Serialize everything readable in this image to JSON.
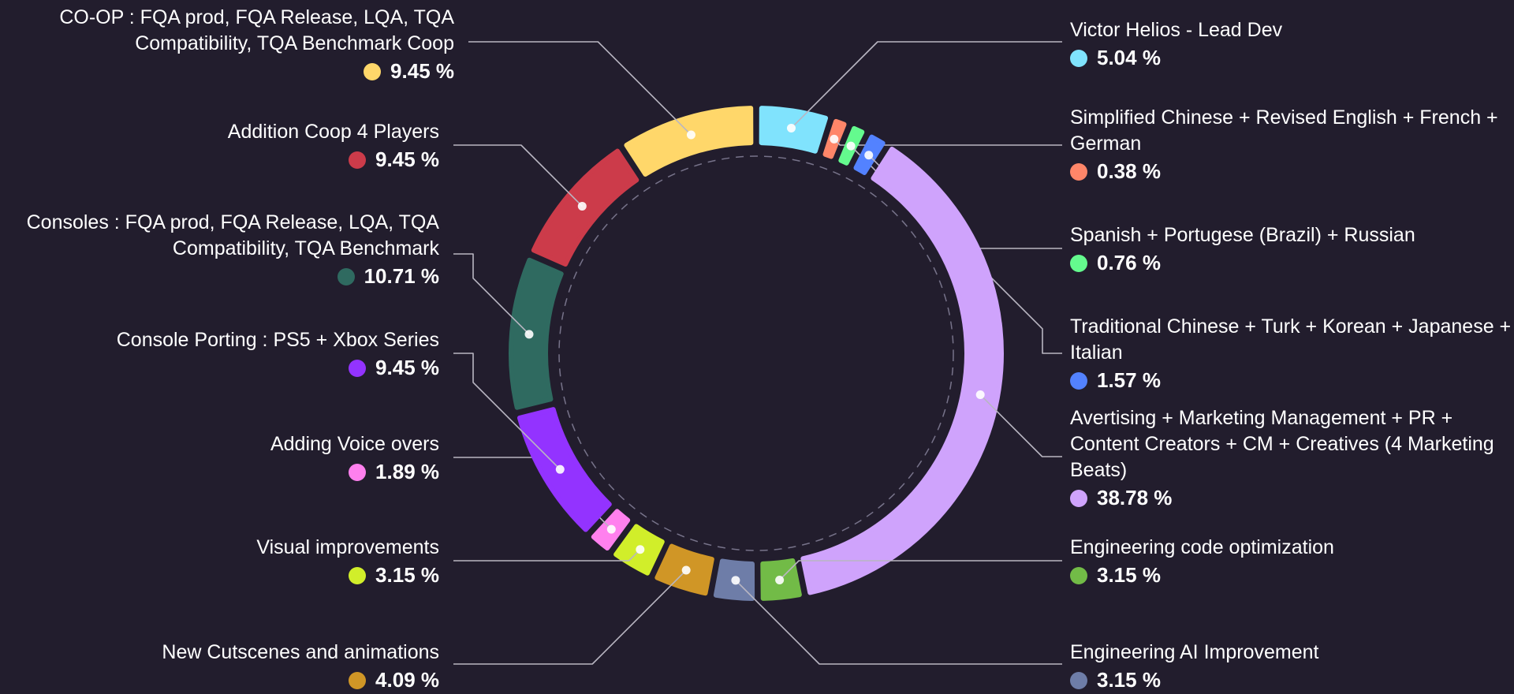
{
  "chart_data": {
    "type": "pie",
    "variant": "donut",
    "start": "top",
    "direction": "clockwise",
    "legend": "leader-line labels around ring",
    "slices": [
      {
        "label": "Victor Helios - Lead Dev",
        "value": 5.04,
        "display": "5.04 %",
        "color": "#80e3fd",
        "side": "right"
      },
      {
        "label": "Simplified Chinese + Revised English + French + German",
        "value": 0.38,
        "display": "0.38 %",
        "color": "#ff8669",
        "side": "right"
      },
      {
        "label": "Spanish + Portugese (Brazil) + Russian",
        "value": 0.76,
        "display": "0.76 %",
        "color": "#64fa8e",
        "side": "right"
      },
      {
        "label": "Traditional Chinese + Turk + Korean + Japanese + Italian",
        "value": 1.57,
        "display": "1.57 %",
        "color": "#5382ff",
        "side": "right"
      },
      {
        "label": "Avertising + Marketing Management + PR + Content Creators + CM + Creatives (4 Marketing Beats)",
        "value": 38.78,
        "display": "38.78 %",
        "color": "#cfa3fc",
        "side": "right"
      },
      {
        "label": "Engineering code optimization",
        "value": 3.15,
        "display": "3.15 %",
        "color": "#72bb47",
        "side": "right"
      },
      {
        "label": "Engineering AI Improvement",
        "value": 3.15,
        "display": "3.15 %",
        "color": "#6e7da8",
        "side": "right"
      },
      {
        "label": "New Cutscenes and animations",
        "value": 4.09,
        "display": "4.09 %",
        "color": "#d09626",
        "side": "left"
      },
      {
        "label": "Visual improvements",
        "value": 3.15,
        "display": "3.15 %",
        "color": "#d1ee2a",
        "side": "left"
      },
      {
        "label": "Adding Voice overs",
        "value": 1.89,
        "display": "1.89 %",
        "color": "#ff80ee",
        "side": "left"
      },
      {
        "label": "Console Porting : PS5 + Xbox Series",
        "value": 9.45,
        "display": "9.45 %",
        "color": "#9333ff",
        "side": "left"
      },
      {
        "label": "Consoles : FQA prod, FQA Release, LQA, TQA Compatibility, TQA Benchmark",
        "value": 10.71,
        "display": "10.71 %",
        "color": "#2f6a60",
        "side": "left"
      },
      {
        "label": "Addition Coop 4 Players",
        "value": 9.45,
        "display": "9.45 %",
        "color": "#cc3b4a",
        "side": "left"
      },
      {
        "label": "CO-OP : FQA prod, FQA Release, LQA, TQA Compatibility, TQA Benchmark Coop",
        "value": 9.45,
        "display": "9.45 %",
        "color": "#ffd76a",
        "side": "left"
      }
    ]
  }
}
